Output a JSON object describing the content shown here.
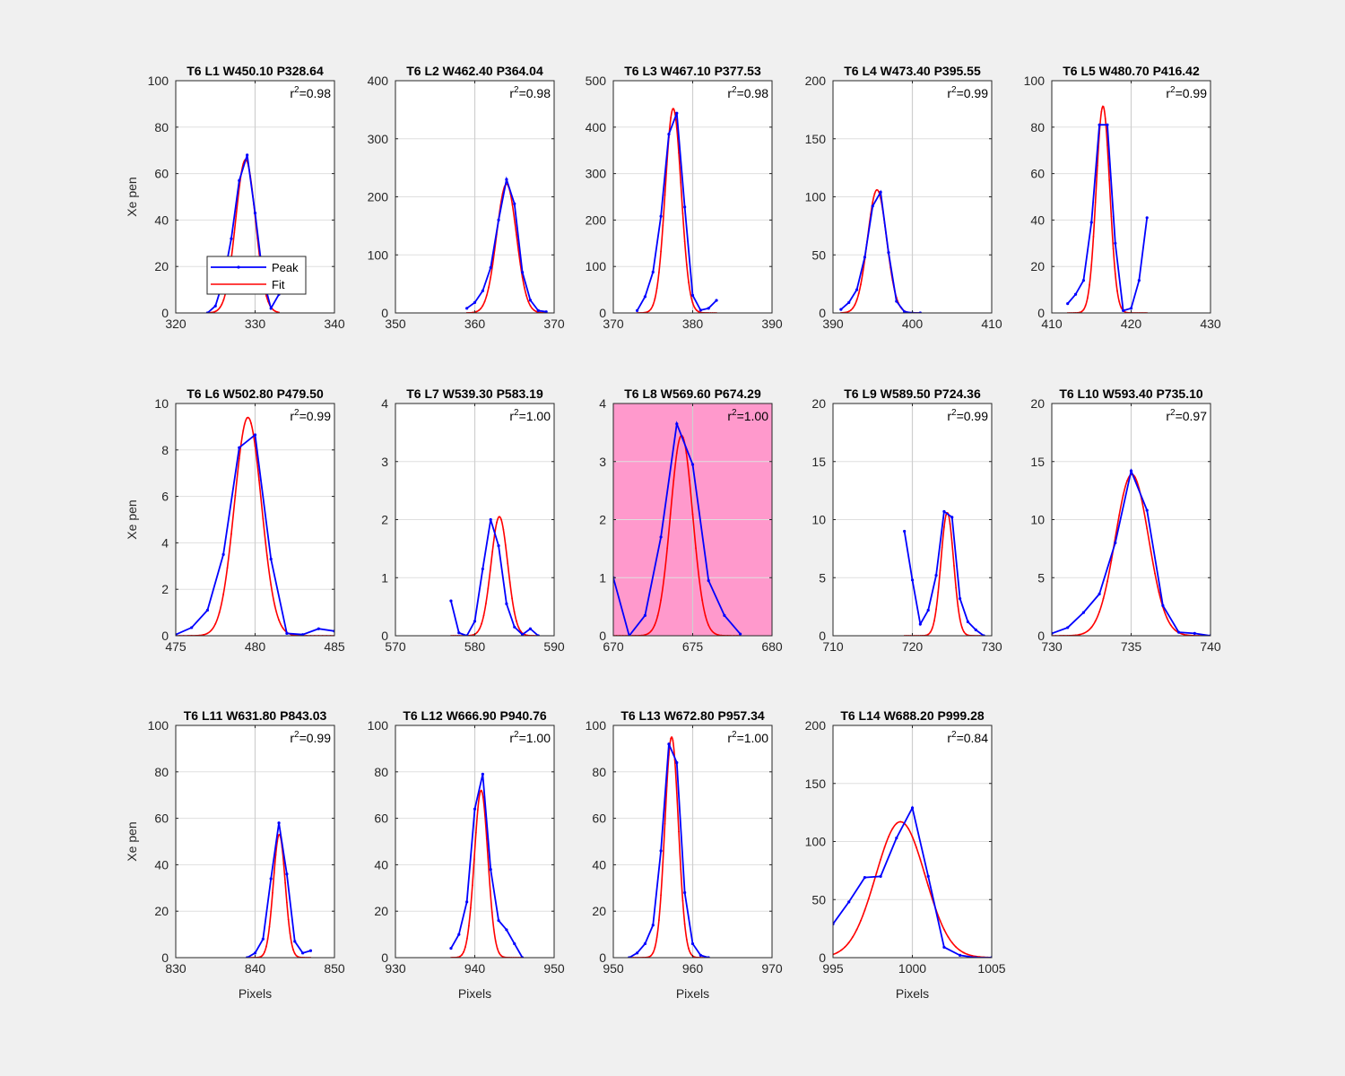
{
  "figure": {
    "legend": {
      "peak_label": "Peak",
      "fit_label": "Fit"
    },
    "ylabel": "Xe pen",
    "xlabel": "Pixels",
    "colors": {
      "peak": "#0000ff",
      "fit": "#ff0000",
      "highlight": "#ff99cc",
      "background": "#f0f0f0"
    }
  },
  "chart_data": [
    {
      "type": "line",
      "title": "T6 L1 W450.10 P328.64",
      "r2": "0.98",
      "xlim": [
        320,
        340
      ],
      "ylim": [
        0,
        100
      ],
      "xticks": [
        320,
        330,
        340
      ],
      "yticks": [
        0,
        20,
        40,
        60,
        80,
        100
      ],
      "xline": 330,
      "ylabel": "Xe pen",
      "xlabel": "",
      "legend": "bottom-left",
      "highlight": false,
      "series": [
        {
          "name": "Peak",
          "x": [
            324,
            325,
            326,
            327,
            328,
            329,
            330,
            331,
            332,
            333
          ],
          "y": [
            0,
            3,
            14,
            32,
            57,
            68,
            43,
            15,
            2,
            8
          ]
        },
        {
          "name": "Fit",
          "model": "gaussian",
          "peak": 66,
          "center": 328.8,
          "sigma": 1.25,
          "baseline": 0
        }
      ]
    },
    {
      "type": "line",
      "title": "T6 L2 W462.40 P364.04",
      "r2": "0.98",
      "xlim": [
        350,
        370
      ],
      "ylim": [
        0,
        400
      ],
      "xticks": [
        350,
        360,
        370
      ],
      "yticks": [
        0,
        100,
        200,
        300,
        400
      ],
      "xline": 360,
      "ylabel": "",
      "xlabel": "",
      "legend": "",
      "highlight": false,
      "series": [
        {
          "name": "Peak",
          "x": [
            359,
            360,
            361,
            362,
            363,
            364,
            365,
            366,
            367,
            368,
            369
          ],
          "y": [
            8,
            18,
            38,
            78,
            160,
            230,
            188,
            70,
            22,
            4,
            2
          ]
        },
        {
          "name": "Fit",
          "model": "gaussian",
          "peak": 222,
          "center": 364.0,
          "sigma": 1.25,
          "baseline": 0
        }
      ]
    },
    {
      "type": "line",
      "title": "T6 L3 W467.10 P377.53",
      "r2": "0.98",
      "xlim": [
        370,
        390
      ],
      "ylim": [
        0,
        500
      ],
      "xticks": [
        370,
        380,
        390
      ],
      "yticks": [
        0,
        100,
        200,
        300,
        400,
        500
      ],
      "xline": 380,
      "ylabel": "",
      "xlabel": "",
      "legend": "",
      "highlight": false,
      "series": [
        {
          "name": "Peak",
          "x": [
            373,
            374,
            375,
            376,
            377,
            378,
            379,
            380,
            381,
            382,
            383
          ],
          "y": [
            5,
            35,
            88,
            208,
            385,
            430,
            228,
            38,
            6,
            10,
            27
          ]
        },
        {
          "name": "Fit",
          "model": "gaussian",
          "peak": 440,
          "center": 377.55,
          "sigma": 1.0,
          "baseline": 0
        }
      ]
    },
    {
      "type": "line",
      "title": "T6 L4 W473.40 P395.55",
      "r2": "0.99",
      "xlim": [
        390,
        410
      ],
      "ylim": [
        0,
        200
      ],
      "xticks": [
        390,
        400,
        410
      ],
      "yticks": [
        0,
        50,
        100,
        150,
        200
      ],
      "xline": 400,
      "ylabel": "",
      "xlabel": "",
      "legend": "",
      "highlight": false,
      "series": [
        {
          "name": "Peak",
          "x": [
            391,
            392,
            393,
            394,
            395,
            396,
            397,
            398,
            399,
            400,
            401
          ],
          "y": [
            3,
            9,
            20,
            48,
            92,
            104,
            52,
            10,
            1,
            0,
            0
          ]
        },
        {
          "name": "Fit",
          "model": "gaussian",
          "peak": 106,
          "center": 395.55,
          "sigma": 1.2,
          "baseline": 0
        }
      ]
    },
    {
      "type": "line",
      "title": "T6 L5 W480.70 P416.42",
      "r2": "0.99",
      "xlim": [
        410,
        430
      ],
      "ylim": [
        0,
        100
      ],
      "xticks": [
        410,
        420,
        430
      ],
      "yticks": [
        0,
        20,
        40,
        60,
        80,
        100
      ],
      "xline": 420,
      "ylabel": "",
      "xlabel": "",
      "legend": "",
      "highlight": false,
      "series": [
        {
          "name": "Peak",
          "x": [
            412,
            413,
            414,
            415,
            416,
            417,
            418,
            419,
            420,
            421,
            422
          ],
          "y": [
            4,
            8,
            14,
            39,
            81,
            81,
            30,
            1,
            2,
            14,
            41
          ]
        },
        {
          "name": "Fit",
          "model": "gaussian",
          "peak": 89,
          "center": 416.45,
          "sigma": 0.85,
          "baseline": 0
        }
      ]
    },
    {
      "type": "line",
      "title": "T6 L6 W502.80 P479.50",
      "r2": "0.99",
      "xlim": [
        475,
        485
      ],
      "ylim": [
        0,
        10
      ],
      "xticks": [
        475,
        480,
        485
      ],
      "yticks": [
        0,
        2,
        4,
        6,
        8,
        10
      ],
      "xline": 480,
      "ylabel": "Xe pen",
      "xlabel": "",
      "legend": "",
      "highlight": false,
      "series": [
        {
          "name": "Peak",
          "x": [
            475,
            476,
            477,
            478,
            479,
            480,
            481,
            482,
            483,
            484,
            485
          ],
          "y": [
            0.05,
            0.35,
            1.1,
            3.5,
            8.1,
            8.65,
            3.3,
            0.1,
            0.05,
            0.3,
            0.2
          ]
        },
        {
          "name": "Fit",
          "model": "gaussian",
          "peak": 9.4,
          "center": 479.55,
          "sigma": 0.85,
          "baseline": 0
        }
      ]
    },
    {
      "type": "line",
      "title": "T6 L7 W539.30 P583.19",
      "r2": "1.00",
      "xlim": [
        570,
        590
      ],
      "ylim": [
        0,
        4
      ],
      "xticks": [
        570,
        580,
        590
      ],
      "yticks": [
        0,
        1,
        2,
        3,
        4
      ],
      "xline": 580,
      "ylabel": "",
      "xlabel": "",
      "legend": "",
      "highlight": false,
      "series": [
        {
          "name": "Peak",
          "x": [
            577,
            578,
            579,
            580,
            581,
            582,
            583,
            584,
            585,
            586,
            587,
            588
          ],
          "y": [
            0.6,
            0.05,
            0.0,
            0.25,
            1.15,
            2.0,
            1.55,
            0.55,
            0.15,
            0.02,
            0.12,
            0.0
          ]
        },
        {
          "name": "Fit",
          "model": "gaussian",
          "peak": 2.05,
          "center": 583.1,
          "sigma": 1.05,
          "baseline": 0
        }
      ]
    },
    {
      "type": "line",
      "title": "T6 L8 W569.60 P674.29",
      "r2": "1.00",
      "xlim": [
        670,
        680
      ],
      "ylim": [
        0,
        4
      ],
      "xticks": [
        670,
        675,
        680
      ],
      "yticks": [
        0,
        1,
        2,
        3,
        4
      ],
      "xline": 675,
      "ylabel": "",
      "xlabel": "",
      "legend": "",
      "highlight": true,
      "series": [
        {
          "name": "Peak",
          "x": [
            670,
            671,
            672,
            673,
            674,
            675,
            676,
            677,
            678
          ],
          "y": [
            1.0,
            0.0,
            0.35,
            1.7,
            3.65,
            2.95,
            0.95,
            0.35,
            0.03
          ]
        },
        {
          "name": "Fit",
          "model": "gaussian",
          "peak": 3.45,
          "center": 674.3,
          "sigma": 0.7,
          "baseline": 0
        }
      ]
    },
    {
      "type": "line",
      "title": "T6 L9 W589.50 P724.36",
      "r2": "0.99",
      "xlim": [
        710,
        730
      ],
      "ylim": [
        0,
        20
      ],
      "xticks": [
        710,
        720,
        730
      ],
      "yticks": [
        0,
        5,
        10,
        15,
        20
      ],
      "xline": 720,
      "ylabel": "",
      "xlabel": "",
      "legend": "",
      "highlight": false,
      "series": [
        {
          "name": "Peak",
          "x": [
            719,
            720,
            721,
            722,
            723,
            724,
            725,
            726,
            727,
            728,
            729
          ],
          "y": [
            9.0,
            4.8,
            1.0,
            2.2,
            5.2,
            10.7,
            10.2,
            3.2,
            1.2,
            0.5,
            0.0
          ]
        },
        {
          "name": "Fit",
          "model": "gaussian",
          "peak": 10.6,
          "center": 724.4,
          "sigma": 0.8,
          "baseline": 0
        }
      ]
    },
    {
      "type": "line",
      "title": "T6 L10 W593.40 P735.10",
      "r2": "0.97",
      "xlim": [
        730,
        740
      ],
      "ylim": [
        0,
        20
      ],
      "xticks": [
        730,
        735,
        740
      ],
      "yticks": [
        0,
        5,
        10,
        15,
        20
      ],
      "xline": 735,
      "ylabel": "",
      "xlabel": "",
      "legend": "",
      "highlight": false,
      "series": [
        {
          "name": "Peak",
          "x": [
            730,
            731,
            732,
            733,
            734,
            735,
            736,
            737,
            738,
            739,
            740
          ],
          "y": [
            0.2,
            0.7,
            2.0,
            3.6,
            8.0,
            14.2,
            10.8,
            2.6,
            0.3,
            0.2,
            0.0
          ]
        },
        {
          "name": "Fit",
          "model": "gaussian",
          "peak": 13.9,
          "center": 735.05,
          "sigma": 1.05,
          "baseline": 0
        }
      ]
    },
    {
      "type": "line",
      "title": "T6 L11 W631.80 P843.03",
      "r2": "0.99",
      "xlim": [
        830,
        850
      ],
      "ylim": [
        0,
        100
      ],
      "xticks": [
        830,
        840,
        850
      ],
      "yticks": [
        0,
        20,
        40,
        60,
        80,
        100
      ],
      "xline": 840,
      "ylabel": "Xe pen",
      "xlabel": "Pixels",
      "legend": "",
      "highlight": false,
      "series": [
        {
          "name": "Peak",
          "x": [
            839,
            840,
            841,
            842,
            843,
            844,
            845,
            846,
            847
          ],
          "y": [
            0,
            2,
            8,
            34,
            58,
            36,
            7,
            2,
            3
          ]
        },
        {
          "name": "Fit",
          "model": "gaussian",
          "peak": 53,
          "center": 843.05,
          "sigma": 0.75,
          "baseline": 0
        }
      ]
    },
    {
      "type": "line",
      "title": "T6 L12 W666.90 P940.76",
      "r2": "1.00",
      "xlim": [
        930,
        950
      ],
      "ylim": [
        0,
        100
      ],
      "xticks": [
        930,
        940,
        950
      ],
      "yticks": [
        0,
        20,
        40,
        60,
        80,
        100
      ],
      "xline": 940,
      "ylabel": "",
      "xlabel": "Pixels",
      "legend": "",
      "highlight": false,
      "series": [
        {
          "name": "Peak",
          "x": [
            937,
            938,
            939,
            940,
            941,
            942,
            943,
            944,
            945,
            946
          ],
          "y": [
            4,
            10,
            24,
            64,
            79,
            38,
            16,
            12,
            6,
            0
          ]
        },
        {
          "name": "Fit",
          "model": "gaussian",
          "peak": 72,
          "center": 940.8,
          "sigma": 0.85,
          "baseline": 0
        }
      ]
    },
    {
      "type": "line",
      "title": "T6 L13 W672.80 P957.34",
      "r2": "1.00",
      "xlim": [
        950,
        970
      ],
      "ylim": [
        0,
        100
      ],
      "xticks": [
        950,
        960,
        970
      ],
      "yticks": [
        0,
        20,
        40,
        60,
        80,
        100
      ],
      "xline": 960,
      "ylabel": "",
      "xlabel": "Pixels",
      "legend": "",
      "highlight": false,
      "series": [
        {
          "name": "Peak",
          "x": [
            952,
            953,
            954,
            955,
            956,
            957,
            958,
            959,
            960,
            961,
            962
          ],
          "y": [
            0,
            2,
            6,
            14,
            46,
            92,
            84,
            28,
            6,
            1,
            0
          ]
        },
        {
          "name": "Fit",
          "model": "gaussian",
          "peak": 95,
          "center": 957.35,
          "sigma": 0.85,
          "baseline": 0
        }
      ]
    },
    {
      "type": "line",
      "title": "T6 L14 W688.20 P999.28",
      "r2": "0.84",
      "xlim": [
        995,
        1005
      ],
      "ylim": [
        0,
        200
      ],
      "xticks": [
        995,
        1000,
        1005
      ],
      "yticks": [
        0,
        50,
        100,
        150,
        200
      ],
      "xline": 1000,
      "ylabel": "",
      "xlabel": "Pixels",
      "legend": "",
      "highlight": false,
      "series": [
        {
          "name": "Peak",
          "x": [
            995,
            996,
            997,
            998,
            999,
            1000,
            1001,
            1002,
            1003,
            1004,
            1005
          ],
          "y": [
            29,
            48,
            69,
            70,
            103,
            129,
            70,
            9,
            2,
            0,
            0
          ]
        },
        {
          "name": "Fit",
          "model": "gaussian",
          "peak": 117,
          "center": 999.25,
          "sigma": 1.55,
          "baseline": 0
        }
      ]
    }
  ]
}
